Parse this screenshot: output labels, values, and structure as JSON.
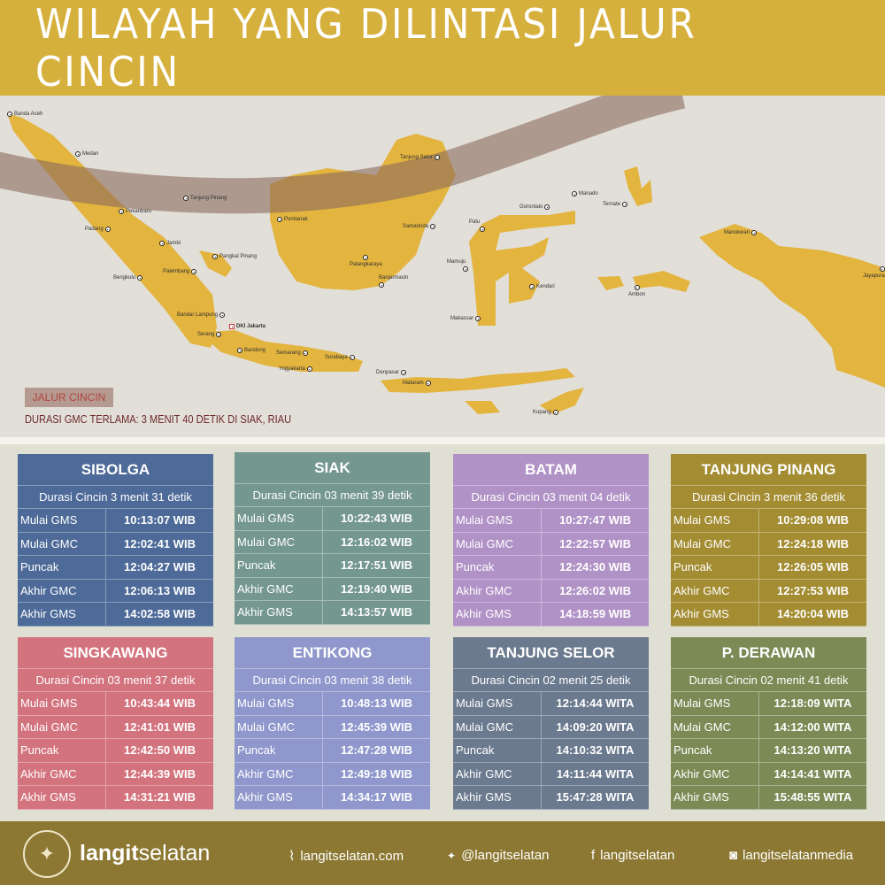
{
  "title": "WILAYAH YANG DILINTASI JALUR CINCIN",
  "colors": {
    "title_band": "#d6b03c",
    "land": "#e3b43e",
    "path_band": "#8b6a5e",
    "map_bg": "#e2ded8",
    "footer": "#8c7832"
  },
  "map": {
    "cities": [
      "Banda Aceh",
      "Medan",
      "Tanjung Pinang",
      "Pekanbaru",
      "Padang",
      "Jambi",
      "Pangkal Pinang",
      "Palembang",
      "Bengkulu",
      "Bandar Lampung",
      "Serang",
      "DKI Jakarta",
      "Bandung",
      "Semarang",
      "Yogyakarta",
      "Surabaya",
      "Denpasar",
      "Mataram",
      "Pontianak",
      "Tanjung Selor",
      "Samarinda",
      "Palangkaraya",
      "Banjarmasin",
      "Manado",
      "Gorontalo",
      "Ternate",
      "Palu",
      "Mamuju",
      "Kendari",
      "Makassar",
      "Ambon",
      "Manokwari",
      "Jayapura",
      "Kupang"
    ],
    "legend_label": "JALUR CINCIN",
    "note": "DURASI GMC TERLAMA: 3 MENIT 40 DETIK DI SIAK, RIAU"
  },
  "row_labels": [
    "Mulai GMS",
    "Mulai GMC",
    "Puncak",
    "Akhir GMC",
    "Akhir GMS"
  ],
  "locations": [
    {
      "name": "SIBOLGA",
      "color": "#4d6a98",
      "duration": "Durasi Cincin 3 menit 31 detik",
      "times": [
        "10:13:07 WIB",
        "12:02:41 WIB",
        "12:04:27 WIB",
        "12:06:13  WIB",
        "14:02:58 WIB"
      ]
    },
    {
      "name": "SIAK",
      "color": "#74978f",
      "duration": "Durasi Cincin 03 menit 39 detik",
      "times": [
        "10:22:43 WIB",
        "12:16:02 WIB",
        "12:17:51 WIB",
        "12:19:40 WIB",
        "14:13:57 WIB"
      ]
    },
    {
      "name": "BATAM",
      "color": "#b192c6",
      "duration": "Durasi Cincin 03 menit 04 detik",
      "times": [
        "10:27:47 WIB",
        "12:22:57 WIB",
        "12:24:30 WIB",
        "12:26:02 WIB",
        "14:18:59 WIB"
      ]
    },
    {
      "name": "TANJUNG PINANG",
      "color": "#a38c32",
      "duration": "Durasi Cincin 3 menit 36 detik",
      "times": [
        "10:29:08 WIB",
        "12:24:18 WIB",
        "12:26:05 WIB",
        "12:27:53 WIB",
        "14:20:04 WIB"
      ]
    },
    {
      "name": "SINGKAWANG",
      "color": "#d3737e",
      "duration": "Durasi Cincin 03 menit 37 detik",
      "times": [
        "10:43:44 WIB",
        "12:41:01 WIB",
        "12:42:50 WIB",
        "12:44:39 WIB",
        "14:31:21 WIB"
      ]
    },
    {
      "name": "ENTIKONG",
      "color": "#8f97cc",
      "duration": "Durasi Cincin 03 menit 38 detik",
      "times": [
        "10:48:13 WIB",
        "12:45:39 WIB",
        "12:47:28 WIB",
        "12:49:18 WIB",
        "14:34:17 WIB"
      ]
    },
    {
      "name": "TANJUNG SELOR",
      "color": "#6b7a8e",
      "duration": "Durasi Cincin 02 menit 25 detik",
      "times": [
        "12:14:44 WITA",
        "14:09:20 WITA",
        "14:10:32 WITA",
        "14:11:44 WITA",
        "15:47:28 WITA"
      ]
    },
    {
      "name": "P. DERAWAN",
      "color": "#7c8a55",
      "duration": "Durasi Cincin 02 menit 41 detik",
      "times": [
        "12:18:09 WITA",
        "14:12:00 WITA",
        "14:13:20 WITA",
        "14:14:41 WITA",
        "15:48:55 WITA"
      ]
    }
  ],
  "footer": {
    "logo_text": "LANGITSELATAN",
    "brand_bold": "langit",
    "brand_light": "selatan",
    "links": [
      {
        "icon": "rss-icon",
        "glyph": "⌇",
        "text": "langitselatan.com"
      },
      {
        "icon": "twitter-icon",
        "glyph": "🐦",
        "text": "@langitselatan"
      },
      {
        "icon": "facebook-icon",
        "glyph": "f",
        "text": "langitselatan"
      },
      {
        "icon": "instagram-icon",
        "glyph": "◙",
        "text": "langitselatanmedia"
      }
    ]
  }
}
